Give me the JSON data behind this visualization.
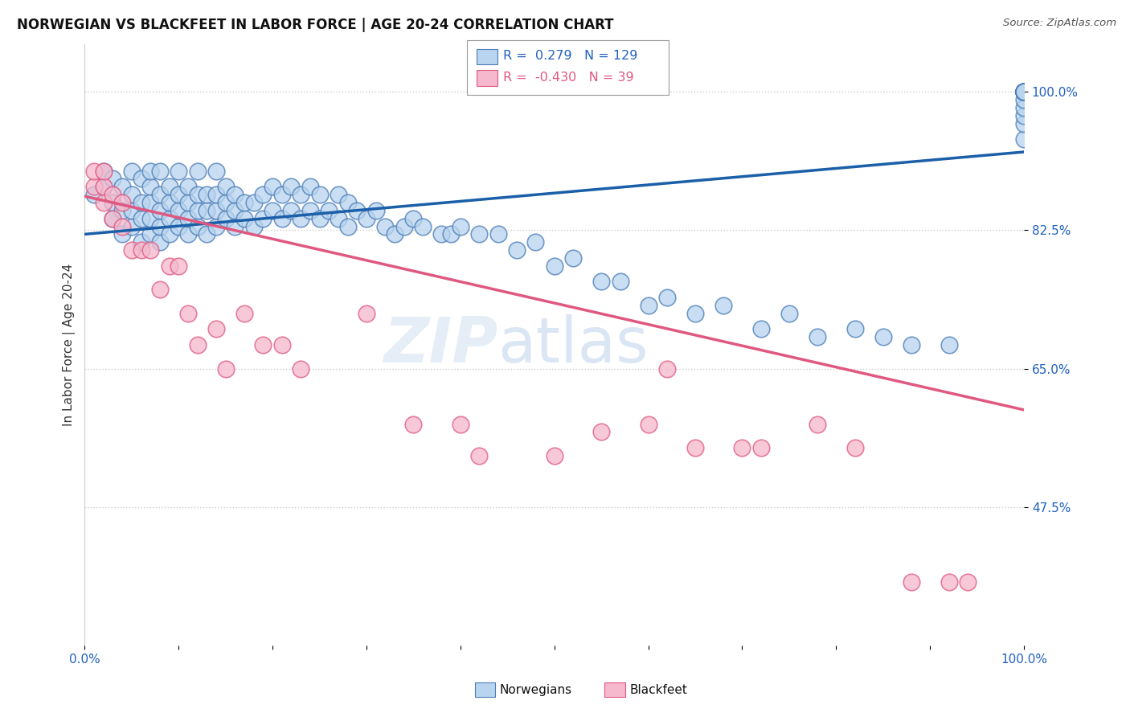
{
  "title": "NORWEGIAN VS BLACKFEET IN LABOR FORCE | AGE 20-24 CORRELATION CHART",
  "source": "Source: ZipAtlas.com",
  "ylabel": "In Labor Force | Age 20-24",
  "xlim": [
    0,
    1
  ],
  "ylim": [
    0.3,
    1.06
  ],
  "yticks": [
    0.475,
    0.65,
    0.825,
    1.0
  ],
  "ytick_labels": [
    "47.5%",
    "65.0%",
    "82.5%",
    "100.0%"
  ],
  "blue_R": 0.279,
  "blue_N": 129,
  "pink_R": -0.43,
  "pink_N": 39,
  "blue_color": "#b8d4ee",
  "blue_edge_color": "#4a7cb8",
  "pink_color": "#f5b8cc",
  "pink_edge_color": "#e05880",
  "legend_label_blue": "Norwegians",
  "legend_label_pink": "Blackfeet",
  "watermark_zip": "ZIP",
  "watermark_atlas": "atlas",
  "background_color": "#ffffff",
  "blue_line_y_start": 0.82,
  "blue_line_y_end": 0.924,
  "pink_line_y_start": 0.868,
  "pink_line_y_end": 0.598,
  "blue_scatter_x": [
    0.01,
    0.02,
    0.02,
    0.03,
    0.03,
    0.03,
    0.04,
    0.04,
    0.04,
    0.05,
    0.05,
    0.05,
    0.05,
    0.06,
    0.06,
    0.06,
    0.06,
    0.07,
    0.07,
    0.07,
    0.07,
    0.07,
    0.08,
    0.08,
    0.08,
    0.08,
    0.08,
    0.09,
    0.09,
    0.09,
    0.09,
    0.1,
    0.1,
    0.1,
    0.1,
    0.11,
    0.11,
    0.11,
    0.11,
    0.12,
    0.12,
    0.12,
    0.12,
    0.13,
    0.13,
    0.13,
    0.14,
    0.14,
    0.14,
    0.14,
    0.15,
    0.15,
    0.15,
    0.16,
    0.16,
    0.16,
    0.17,
    0.17,
    0.18,
    0.18,
    0.19,
    0.19,
    0.2,
    0.2,
    0.21,
    0.21,
    0.22,
    0.22,
    0.23,
    0.23,
    0.24,
    0.24,
    0.25,
    0.25,
    0.26,
    0.27,
    0.27,
    0.28,
    0.28,
    0.29,
    0.3,
    0.31,
    0.32,
    0.33,
    0.34,
    0.35,
    0.36,
    0.38,
    0.39,
    0.4,
    0.42,
    0.44,
    0.46,
    0.48,
    0.5,
    0.52,
    0.55,
    0.57,
    0.6,
    0.62,
    0.65,
    0.68,
    0.72,
    0.75,
    0.78,
    0.82,
    0.85,
    0.88,
    0.92,
    1.0,
    1.0,
    1.0,
    1.0,
    1.0,
    1.0,
    1.0,
    1.0,
    1.0,
    1.0,
    1.0,
    1.0,
    1.0,
    1.0,
    1.0,
    1.0,
    1.0,
    1.0,
    1.0,
    1.0
  ],
  "blue_scatter_y": [
    0.87,
    0.88,
    0.9,
    0.84,
    0.86,
    0.89,
    0.82,
    0.85,
    0.88,
    0.83,
    0.85,
    0.87,
    0.9,
    0.81,
    0.84,
    0.86,
    0.89,
    0.82,
    0.84,
    0.86,
    0.88,
    0.9,
    0.81,
    0.83,
    0.85,
    0.87,
    0.9,
    0.82,
    0.84,
    0.86,
    0.88,
    0.83,
    0.85,
    0.87,
    0.9,
    0.82,
    0.84,
    0.86,
    0.88,
    0.83,
    0.85,
    0.87,
    0.9,
    0.82,
    0.85,
    0.87,
    0.83,
    0.85,
    0.87,
    0.9,
    0.84,
    0.86,
    0.88,
    0.83,
    0.85,
    0.87,
    0.84,
    0.86,
    0.83,
    0.86,
    0.84,
    0.87,
    0.85,
    0.88,
    0.84,
    0.87,
    0.85,
    0.88,
    0.84,
    0.87,
    0.85,
    0.88,
    0.84,
    0.87,
    0.85,
    0.84,
    0.87,
    0.83,
    0.86,
    0.85,
    0.84,
    0.85,
    0.83,
    0.82,
    0.83,
    0.84,
    0.83,
    0.82,
    0.82,
    0.83,
    0.82,
    0.82,
    0.8,
    0.81,
    0.78,
    0.79,
    0.76,
    0.76,
    0.73,
    0.74,
    0.72,
    0.73,
    0.7,
    0.72,
    0.69,
    0.7,
    0.69,
    0.68,
    0.68,
    0.94,
    0.96,
    0.97,
    0.98,
    0.99,
    1.0,
    1.0,
    1.0,
    1.0,
    1.0,
    1.0,
    1.0,
    1.0,
    1.0,
    1.0,
    1.0,
    1.0,
    1.0,
    1.0,
    1.0
  ],
  "pink_scatter_x": [
    0.01,
    0.01,
    0.02,
    0.02,
    0.02,
    0.03,
    0.03,
    0.04,
    0.04,
    0.05,
    0.06,
    0.07,
    0.08,
    0.09,
    0.1,
    0.11,
    0.12,
    0.14,
    0.15,
    0.17,
    0.19,
    0.21,
    0.23,
    0.3,
    0.35,
    0.4,
    0.42,
    0.5,
    0.55,
    0.6,
    0.62,
    0.65,
    0.7,
    0.72,
    0.78,
    0.82,
    0.88,
    0.92,
    0.94
  ],
  "pink_scatter_y": [
    0.88,
    0.9,
    0.86,
    0.88,
    0.9,
    0.84,
    0.87,
    0.83,
    0.86,
    0.8,
    0.8,
    0.8,
    0.75,
    0.78,
    0.78,
    0.72,
    0.68,
    0.7,
    0.65,
    0.72,
    0.68,
    0.68,
    0.65,
    0.72,
    0.58,
    0.58,
    0.54,
    0.54,
    0.57,
    0.58,
    0.65,
    0.55,
    0.55,
    0.55,
    0.58,
    0.55,
    0.38,
    0.38,
    0.38
  ]
}
